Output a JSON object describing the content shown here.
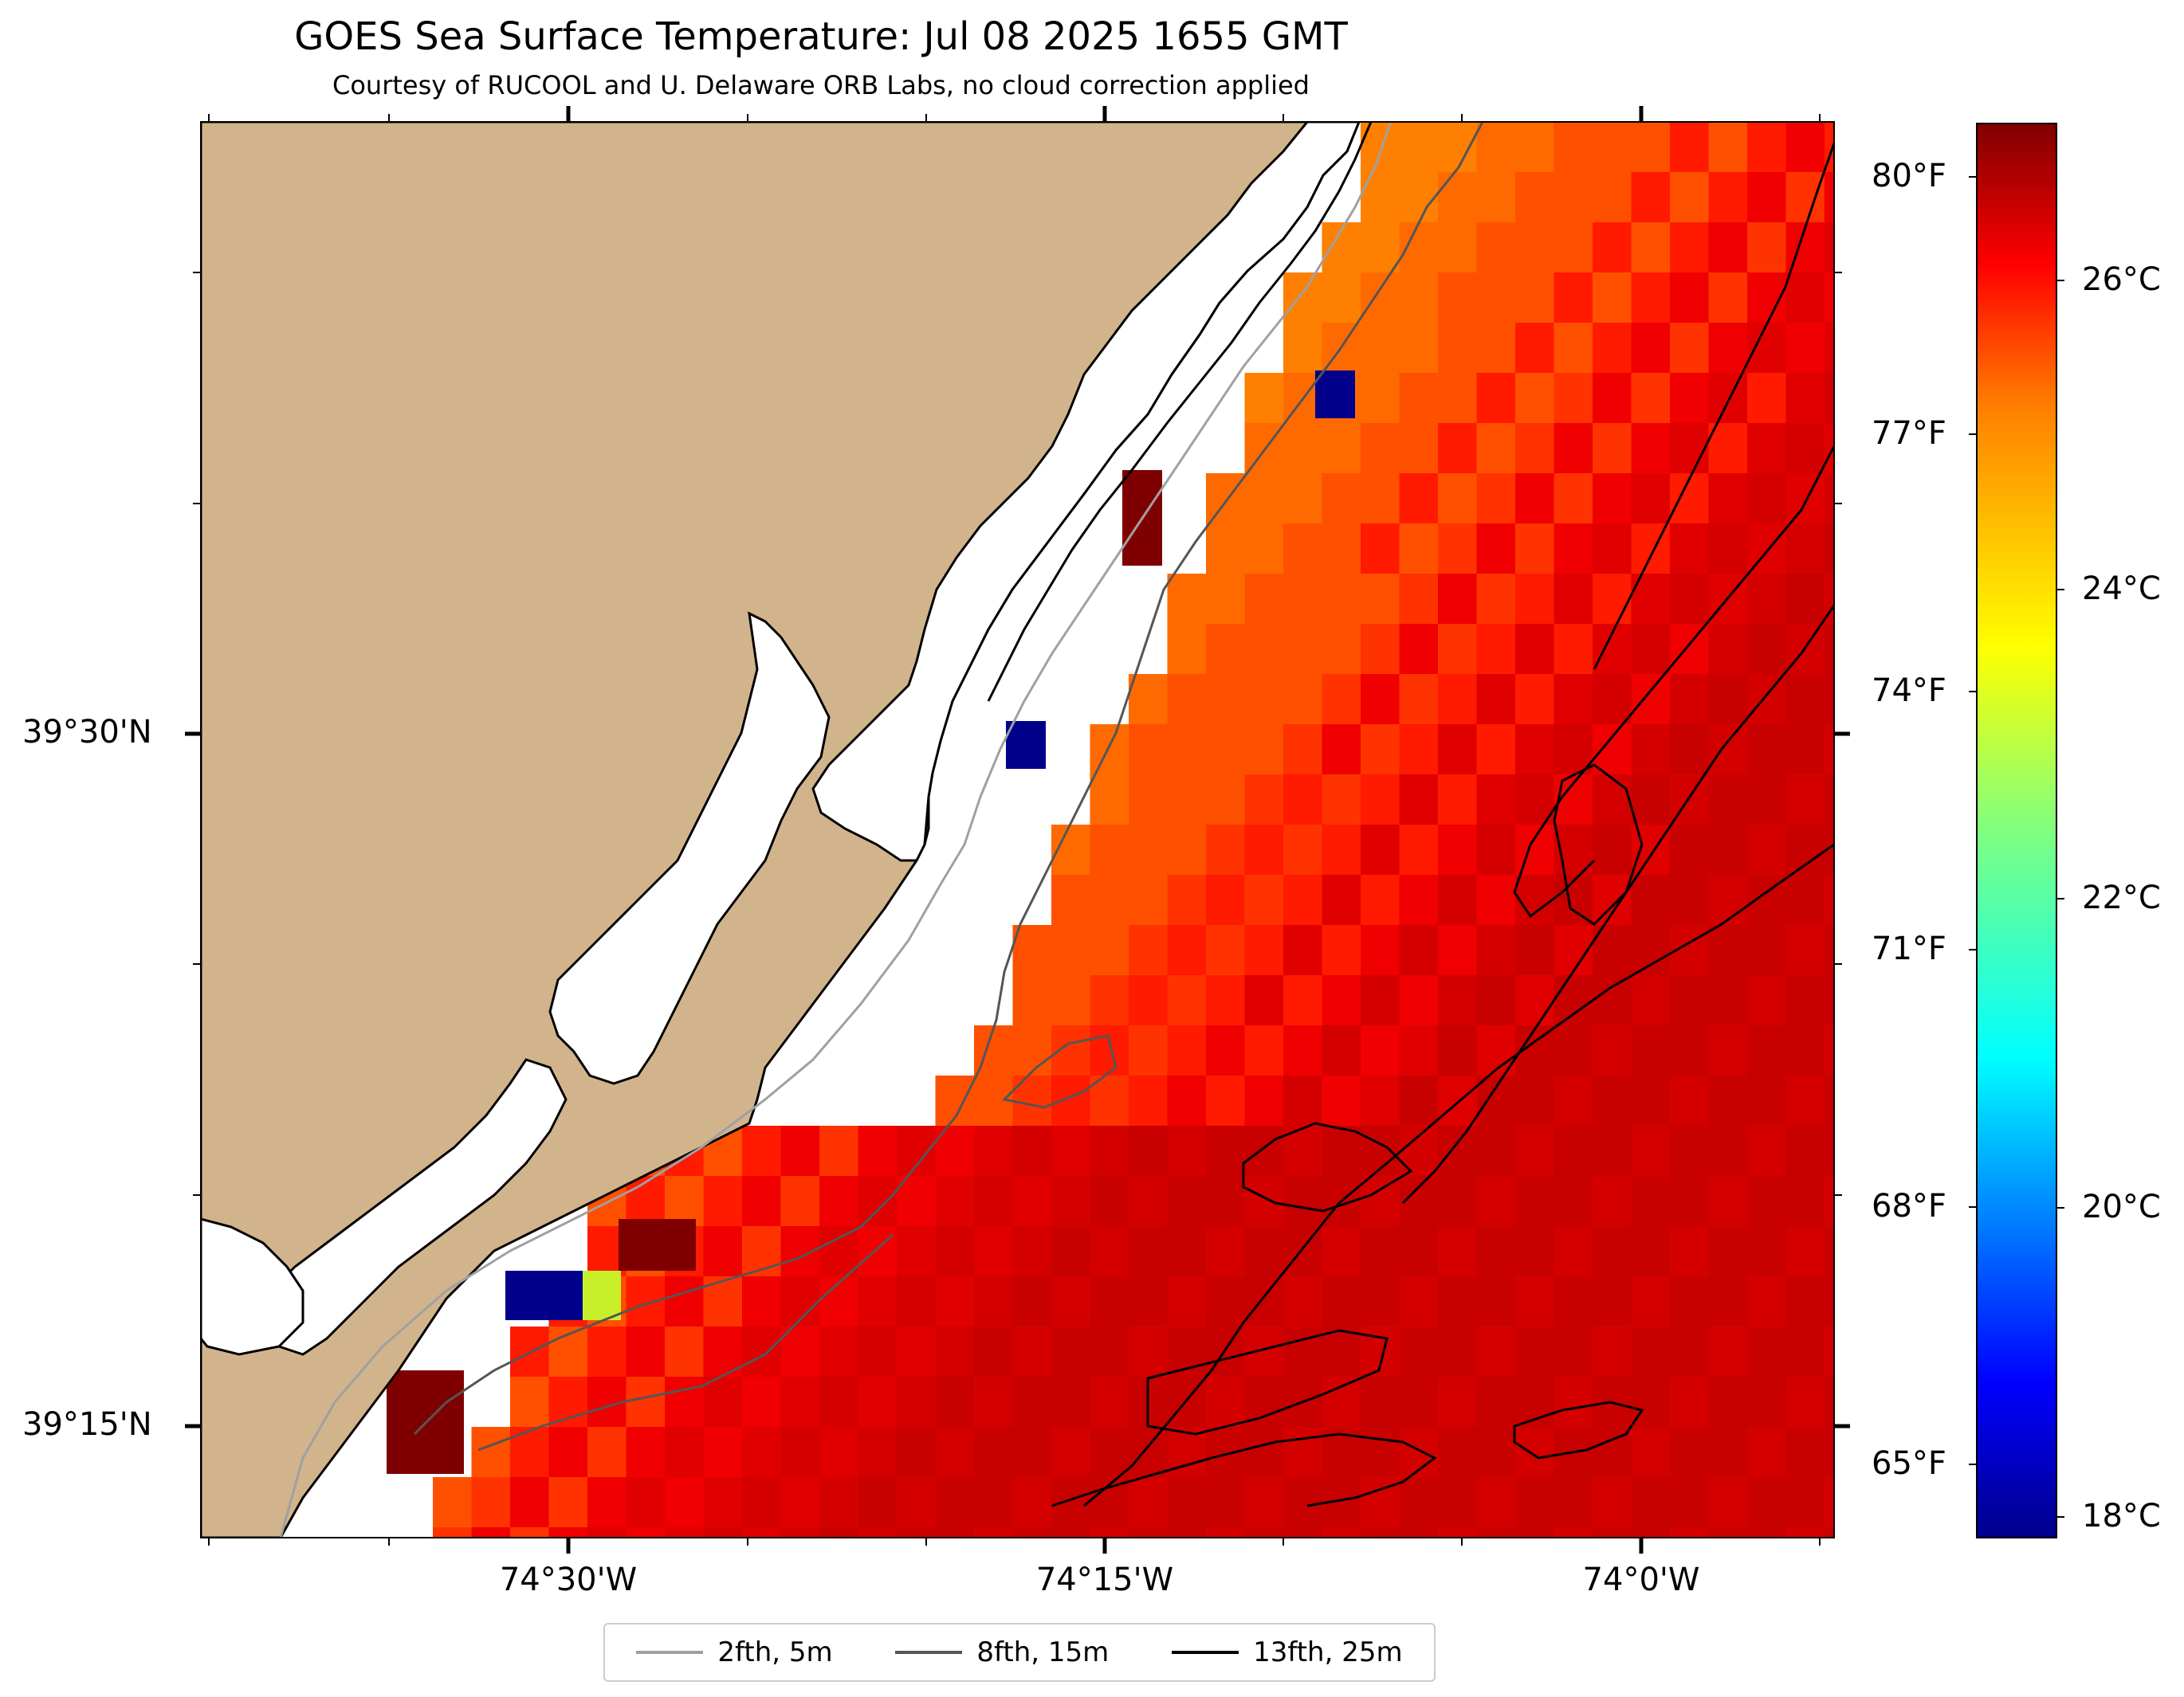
{
  "title": "GOES Sea Surface Temperature: Jul 08 2025 1655 GMT",
  "subtitle": "Courtesy of RUCOOL and U. Delaware ORB Labs, no cloud correction applied",
  "axes": {
    "lat_labels": [
      "39°30'N",
      "39°15'N"
    ],
    "lon_labels": [
      "74°30'W",
      "74°15'W",
      "74°0'W"
    ]
  },
  "colorbar": {
    "fahrenheit_labels": [
      "80°F",
      "77°F",
      "74°F",
      "71°F",
      "68°F",
      "65°F"
    ],
    "celsius_labels": [
      "26°C",
      "24°C",
      "22°C",
      "20°C",
      "18°C"
    ],
    "colormap": "jet",
    "celsius_range": [
      17.9,
      27.3
    ]
  },
  "legend": [
    {
      "label": "2fth, 5m",
      "color": "#a0a0a0"
    },
    {
      "label": "8fth, 15m",
      "color": "#555555"
    },
    {
      "label": "13fth, 25m",
      "color": "#000000"
    }
  ],
  "colors": {
    "land": "#d2b48c",
    "outlier_cold": "#00008b",
    "outlier_mid": "#c8f02a",
    "hot": "#7f0000"
  }
}
